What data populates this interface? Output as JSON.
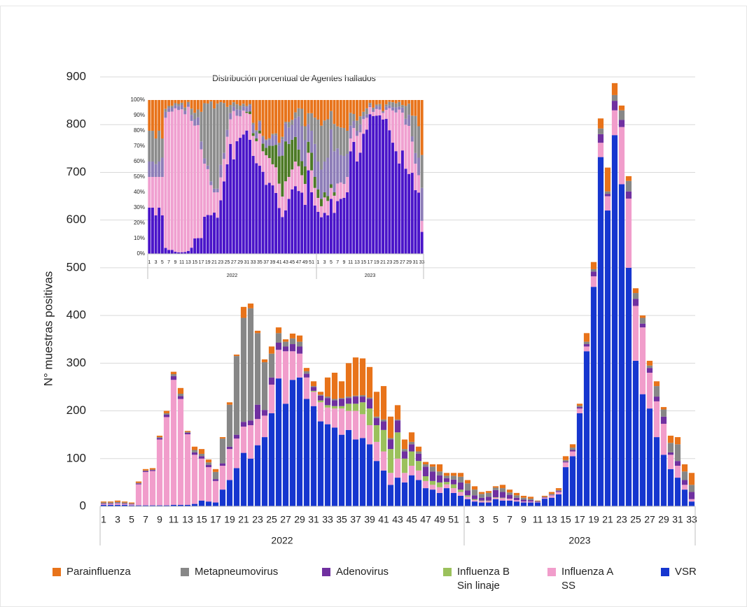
{
  "chart_data": [
    {
      "type": "bar",
      "stacking": "stacked",
      "y_label": "N° muestras positivas",
      "categories": [
        1,
        null,
        3,
        null,
        5,
        null,
        7,
        null,
        9,
        null,
        11,
        null,
        13,
        null,
        15,
        null,
        17,
        null,
        19,
        null,
        21,
        null,
        23,
        null,
        25,
        null,
        27,
        null,
        29,
        null,
        31,
        null,
        33,
        null,
        35,
        null,
        37,
        null,
        39,
        null,
        41,
        null,
        43,
        null,
        45,
        null,
        47,
        null,
        49,
        null,
        51,
        null,
        1,
        null,
        3,
        null,
        5,
        null,
        7,
        null,
        9,
        null,
        11,
        null,
        13,
        null,
        15,
        null,
        17,
        null,
        19,
        null,
        21,
        null,
        23,
        null,
        25,
        null,
        27,
        null,
        29,
        null,
        31,
        null,
        33
      ],
      "groups": [
        "2022",
        "2023"
      ],
      "ylim": [
        0,
        900
      ],
      "yticks": [
        0,
        100,
        200,
        300,
        400,
        500,
        600,
        700,
        800,
        900
      ],
      "grid": true,
      "series": [
        {
          "name": "VSR",
          "color": "#1636cf",
          "values": [
            3,
            3,
            3,
            3,
            2,
            2,
            2,
            2,
            2,
            2,
            3,
            3,
            3,
            5,
            12,
            10,
            8,
            35,
            55,
            80,
            112,
            100,
            128,
            145,
            195,
            268,
            215,
            265,
            270,
            225,
            210,
            178,
            172,
            165,
            150,
            160,
            140,
            143,
            130,
            95,
            75,
            45,
            60,
            50,
            65,
            55,
            38,
            35,
            28,
            38,
            28,
            22,
            15,
            10,
            8,
            8,
            15,
            12,
            12,
            10,
            8,
            8,
            8,
            16,
            18,
            25,
            82,
            105,
            195,
            325,
            460,
            732,
            620,
            778,
            675,
            500,
            305,
            235,
            205,
            145,
            108,
            78,
            60,
            35,
            10
          ]
        },
        {
          "name": "Influenza A SS",
          "color": "#f19dcb",
          "values": [
            2,
            2,
            3,
            2,
            2,
            44,
            70,
            72,
            138,
            185,
            262,
            222,
            148,
            103,
            88,
            72,
            45,
            50,
            65,
            62,
            55,
            70,
            55,
            45,
            60,
            60,
            110,
            60,
            50,
            45,
            30,
            40,
            35,
            40,
            55,
            40,
            60,
            50,
            40,
            40,
            40,
            25,
            40,
            20,
            20,
            20,
            15,
            10,
            12,
            8,
            10,
            8,
            5,
            3,
            3,
            3,
            3,
            5,
            4,
            3,
            2,
            2,
            1,
            2,
            5,
            5,
            10,
            10,
            10,
            10,
            22,
            30,
            30,
            52,
            120,
            145,
            115,
            140,
            75,
            75,
            65,
            30,
            25,
            10,
            5
          ]
        },
        {
          "name": "Influenza B Sin linaje",
          "color": "#9bc15c",
          "values": [
            0,
            0,
            0,
            0,
            0,
            0,
            0,
            0,
            0,
            0,
            0,
            0,
            0,
            0,
            0,
            0,
            0,
            0,
            0,
            0,
            0,
            0,
            0,
            0,
            0,
            0,
            0,
            0,
            0,
            0,
            2,
            4,
            5,
            5,
            5,
            15,
            15,
            25,
            35,
            35,
            45,
            50,
            55,
            30,
            30,
            20,
            10,
            8,
            10,
            5,
            8,
            5,
            3,
            2,
            1,
            1,
            1,
            1,
            0,
            0,
            0,
            0,
            0,
            0,
            0,
            0,
            0,
            0,
            0,
            0,
            0,
            0,
            0,
            0,
            0,
            0,
            0,
            0,
            0,
            0,
            0,
            0,
            0,
            0,
            0
          ]
        },
        {
          "name": "Adenovirus",
          "color": "#7030a0",
          "values": [
            1,
            1,
            1,
            1,
            1,
            2,
            2,
            2,
            3,
            5,
            8,
            6,
            3,
            5,
            5,
            5,
            4,
            5,
            5,
            8,
            10,
            10,
            30,
            12,
            15,
            15,
            10,
            15,
            15,
            8,
            8,
            10,
            15,
            12,
            15,
            12,
            15,
            12,
            20,
            15,
            18,
            20,
            25,
            15,
            15,
            15,
            20,
            20,
            15,
            8,
            10,
            15,
            10,
            8,
            6,
            8,
            15,
            12,
            8,
            5,
            4,
            3,
            1,
            1,
            1,
            2,
            2,
            3,
            3,
            5,
            10,
            18,
            5,
            20,
            15,
            15,
            15,
            8,
            10,
            10,
            15,
            5,
            10,
            10,
            15
          ]
        },
        {
          "name": "Metapneumovirus",
          "color": "#878787",
          "values": [
            2,
            2,
            2,
            2,
            1,
            1,
            1,
            1,
            2,
            3,
            4,
            5,
            2,
            5,
            5,
            5,
            15,
            52,
            88,
            165,
            218,
            235,
            150,
            100,
            50,
            20,
            10,
            12,
            10,
            5,
            2,
            2,
            3,
            3,
            2,
            3,
            2,
            3,
            3,
            3,
            4,
            3,
            2,
            5,
            5,
            5,
            5,
            10,
            8,
            5,
            8,
            12,
            15,
            12,
            8,
            8,
            5,
            8,
            5,
            5,
            4,
            3,
            1,
            1,
            2,
            2,
            3,
            5,
            3,
            5,
            5,
            12,
            5,
            12,
            20,
            22,
            12,
            12,
            5,
            22,
            15,
            20,
            35,
            18,
            15
          ]
        },
        {
          "name": "Parainfluenza",
          "color": "#e8731a",
          "values": [
            2,
            2,
            3,
            2,
            2,
            3,
            3,
            3,
            3,
            5,
            5,
            12,
            2,
            7,
            10,
            6,
            6,
            3,
            5,
            3,
            23,
            10,
            5,
            6,
            15,
            12,
            5,
            10,
            13,
            7,
            10,
            6,
            40,
            55,
            35,
            70,
            80,
            77,
            64,
            52,
            70,
            45,
            30,
            20,
            20,
            10,
            5,
            5,
            15,
            6,
            6,
            8,
            7,
            7,
            4,
            4,
            3,
            7,
            6,
            5,
            4,
            4,
            1,
            2,
            4,
            4,
            8,
            7,
            4,
            18,
            15,
            21,
            50,
            25,
            10,
            10,
            10,
            5,
            10,
            10,
            5,
            15,
            15,
            15,
            25
          ]
        }
      ]
    },
    {
      "type": "bar",
      "stacking": "percent",
      "title": "Distribución porcentual de Agentes hallados",
      "ylim": [
        0,
        100
      ],
      "yticks": [
        {
          "value": 0,
          "label": "0%"
        },
        {
          "value": 10,
          "label": "10%"
        },
        {
          "value": 20,
          "label": "20%"
        },
        {
          "value": 30,
          "label": "30%"
        },
        {
          "value": 40,
          "label": "40%"
        },
        {
          "value": 50,
          "label": "50%"
        },
        {
          "value": 60,
          "label": "60%"
        },
        {
          "value": 70,
          "label": "70%"
        },
        {
          "value": 80,
          "label": "80%"
        },
        {
          "value": 90,
          "label": "90%"
        },
        {
          "value": 100,
          "label": "100%"
        }
      ],
      "colors": [
        "#4a14c9",
        "#f0a0d0",
        "#4d7a26",
        "#8d7db8",
        "#8c8c8c",
        "#e8731a"
      ]
    }
  ]
}
